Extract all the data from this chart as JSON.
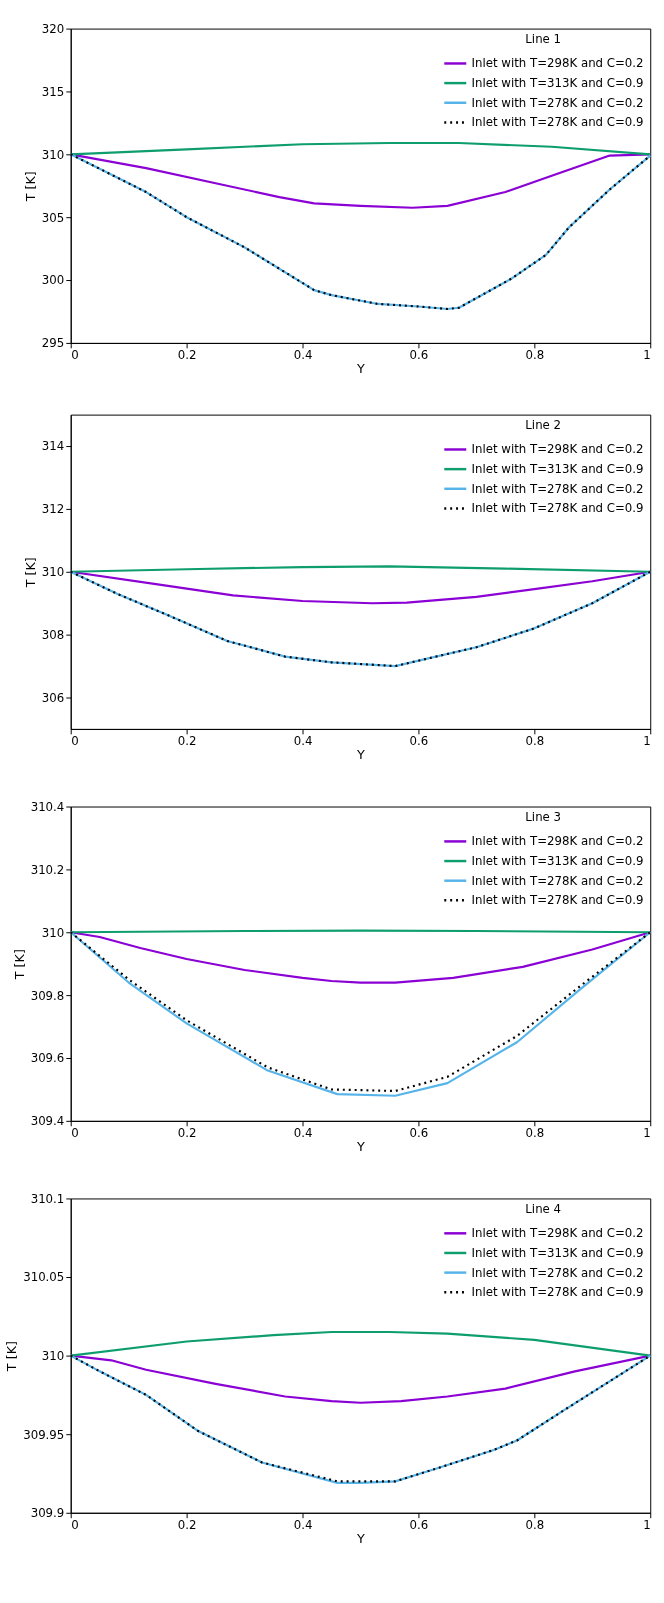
{
  "chart_data": [
    {
      "type": "line",
      "legend_title": "Line 1",
      "xlabel": "Y",
      "ylabel": "T [K]",
      "xlim": [
        0,
        1
      ],
      "xticks": [
        0,
        0.2,
        0.4,
        0.6,
        0.8,
        1
      ],
      "ylim": [
        295,
        320
      ],
      "yticks": [
        295,
        300,
        305,
        310,
        315,
        320
      ],
      "grid": false,
      "legend": "top right",
      "marker": "none",
      "series": [
        {
          "name": "Inlet with T=298K and C=0.2",
          "color": "#8b00d4",
          "line_style": "solid",
          "x": [
            0,
            0.13,
            0.25,
            0.36,
            0.42,
            0.5,
            0.59,
            0.65,
            0.75,
            0.83,
            0.93,
            1
          ],
          "values": [
            310,
            308.9,
            307.7,
            306.6,
            306.1,
            305.9,
            305.75,
            305.9,
            307,
            308.3,
            309.9,
            310
          ]
        },
        {
          "name": "Inlet with T=313K and C=0.9",
          "color": "#0e9e6e",
          "line_style": "solid",
          "x": [
            0,
            0.2,
            0.4,
            0.55,
            0.67,
            0.83,
            1
          ],
          "values": [
            310,
            310.4,
            310.8,
            310.9,
            310.9,
            310.6,
            310
          ]
        },
        {
          "name": "Inlet with T=278K and C=0.2",
          "color": "#56b4e9",
          "line_style": "solid",
          "x": [
            0,
            0.13,
            0.2,
            0.3,
            0.42,
            0.45,
            0.53,
            0.6,
            0.65,
            0.67,
            0.76,
            0.82,
            0.86,
            0.93,
            1
          ],
          "values": [
            310,
            307,
            305,
            302.6,
            299.2,
            298.8,
            298.1,
            297.9,
            297.7,
            297.8,
            300.1,
            302,
            304.2,
            307.2,
            309.9
          ]
        },
        {
          "name": "Inlet with T=278K and C=0.9",
          "color": "#000000",
          "line_style": "dotted",
          "x": [
            0,
            0.13,
            0.2,
            0.3,
            0.42,
            0.45,
            0.53,
            0.6,
            0.65,
            0.67,
            0.76,
            0.82,
            0.86,
            0.93,
            1
          ],
          "values": [
            310,
            307,
            305,
            302.6,
            299.2,
            298.8,
            298.1,
            297.9,
            297.7,
            297.8,
            300.1,
            302,
            304.2,
            307.2,
            309.9
          ]
        }
      ]
    },
    {
      "type": "line",
      "legend_title": "Line 2",
      "xlabel": "Y",
      "ylabel": "T [K]",
      "xlim": [
        0,
        1
      ],
      "xticks": [
        0,
        0.2,
        0.4,
        0.6,
        0.8,
        1
      ],
      "ylim": [
        305,
        315
      ],
      "yticks": [
        306,
        308,
        310,
        312,
        314
      ],
      "grid": false,
      "legend": "top right",
      "marker": "none",
      "series": [
        {
          "name": "Inlet with T=298K and C=0.2",
          "color": "#8b00d4",
          "line_style": "solid",
          "x": [
            0,
            0.15,
            0.28,
            0.4,
            0.52,
            0.58,
            0.7,
            0.8,
            0.9,
            1
          ],
          "values": [
            310,
            309.6,
            309.25,
            309.07,
            309.0,
            309.02,
            309.2,
            309.45,
            309.7,
            310
          ]
        },
        {
          "name": "Inlet with T=313K and C=0.9",
          "color": "#0e9e6e",
          "line_style": "solid",
          "x": [
            0,
            0.2,
            0.4,
            0.55,
            0.75,
            1
          ],
          "values": [
            310,
            310.08,
            310.15,
            310.17,
            310.1,
            310
          ]
        },
        {
          "name": "Inlet with T=278K and C=0.2",
          "color": "#56b4e9",
          "line_style": "solid",
          "x": [
            0,
            0.08,
            0.17,
            0.27,
            0.37,
            0.45,
            0.56,
            0.63,
            0.7,
            0.8,
            0.9,
            1
          ],
          "values": [
            310,
            309.3,
            308.6,
            307.8,
            307.3,
            307.12,
            307.0,
            307.3,
            307.6,
            308.2,
            309,
            310
          ]
        },
        {
          "name": "Inlet with T=278K and C=0.9",
          "color": "#000000",
          "line_style": "dotted",
          "x": [
            0,
            0.08,
            0.17,
            0.27,
            0.37,
            0.45,
            0.56,
            0.63,
            0.7,
            0.8,
            0.9,
            1
          ],
          "values": [
            310,
            309.3,
            308.6,
            307.8,
            307.3,
            307.12,
            307.0,
            307.3,
            307.6,
            308.2,
            309,
            310
          ]
        }
      ]
    },
    {
      "type": "line",
      "legend_title": "Line 3",
      "xlabel": "Y",
      "ylabel": "T [K]",
      "xlim": [
        0,
        1
      ],
      "xticks": [
        0,
        0.2,
        0.4,
        0.6,
        0.8,
        1
      ],
      "ylim": [
        309.4,
        310.4
      ],
      "yticks": [
        309.4,
        309.6,
        309.8,
        310,
        310.2,
        310.4
      ],
      "grid": false,
      "legend": "top right",
      "marker": "none",
      "series": [
        {
          "name": "Inlet with T=298K and C=0.2",
          "color": "#8b00d4",
          "line_style": "solid",
          "x": [
            0,
            0.05,
            0.12,
            0.2,
            0.3,
            0.4,
            0.45,
            0.5,
            0.56,
            0.66,
            0.78,
            0.9,
            1
          ],
          "values": [
            310,
            309.985,
            309.95,
            309.915,
            309.88,
            309.855,
            309.845,
            309.84,
            309.84,
            309.855,
            309.89,
            309.945,
            310
          ]
        },
        {
          "name": "Inlet with T=313K and C=0.9",
          "color": "#0e9e6e",
          "line_style": "solid",
          "x": [
            0,
            0.3,
            0.5,
            0.7,
            1
          ],
          "values": [
            310,
            310.004,
            310.005,
            310.004,
            310
          ]
        },
        {
          "name": "Inlet with T=278K and C=0.2",
          "color": "#56b4e9",
          "line_style": "solid",
          "x": [
            0,
            0.1,
            0.2,
            0.34,
            0.46,
            0.56,
            0.65,
            0.77,
            0.88,
            1
          ],
          "values": [
            310,
            309.84,
            309.71,
            309.56,
            309.485,
            309.48,
            309.52,
            309.65,
            309.82,
            310
          ]
        },
        {
          "name": "Inlet with T=278K and C=0.9",
          "color": "#000000",
          "line_style": "dotted",
          "x": [
            0,
            0.1,
            0.2,
            0.34,
            0.45,
            0.56,
            0.65,
            0.77,
            0.88,
            1
          ],
          "values": [
            310,
            309.85,
            309.72,
            309.57,
            309.5,
            309.495,
            309.54,
            309.67,
            309.83,
            310
          ]
        }
      ]
    },
    {
      "type": "line",
      "legend_title": "Line 4",
      "xlabel": "Y",
      "ylabel": "T [K]",
      "xlim": [
        0,
        1
      ],
      "xticks": [
        0,
        0.2,
        0.4,
        0.6,
        0.8,
        1
      ],
      "ylim": [
        309.9,
        310.1
      ],
      "yticks": [
        309.9,
        309.95,
        310,
        310.05,
        310.1
      ],
      "grid": false,
      "legend": "top right",
      "marker": "none",
      "series": [
        {
          "name": "Inlet with T=298K and C=0.2",
          "color": "#8b00d4",
          "line_style": "solid",
          "x": [
            0,
            0.07,
            0.13,
            0.25,
            0.37,
            0.45,
            0.5,
            0.57,
            0.65,
            0.75,
            0.87,
            1
          ],
          "values": [
            310,
            309.997,
            309.991,
            309.982,
            309.974,
            309.971,
            309.97,
            309.971,
            309.974,
            309.979,
            309.99,
            310
          ]
        },
        {
          "name": "Inlet with T=313K and C=0.9",
          "color": "#0e9e6e",
          "line_style": "solid",
          "x": [
            0,
            0.2,
            0.35,
            0.45,
            0.55,
            0.65,
            0.8,
            1
          ],
          "values": [
            310,
            310.009,
            310.013,
            310.015,
            310.015,
            310.014,
            310.01,
            310
          ]
        },
        {
          "name": "Inlet with T=278K and C=0.2",
          "color": "#56b4e9",
          "line_style": "solid",
          "x": [
            0,
            0.05,
            0.13,
            0.22,
            0.33,
            0.46,
            0.5,
            0.56,
            0.63,
            0.73,
            0.77,
            0.85,
            1
          ],
          "values": [
            310,
            309.99,
            309.975,
            309.952,
            309.932,
            309.919,
            309.919,
            309.92,
            309.928,
            309.94,
            309.946,
            309.965,
            310
          ]
        },
        {
          "name": "Inlet with T=278K and C=0.9",
          "color": "#000000",
          "line_style": "dotted",
          "x": [
            0,
            0.05,
            0.13,
            0.22,
            0.33,
            0.46,
            0.5,
            0.56,
            0.63,
            0.73,
            0.77,
            0.85,
            1
          ],
          "values": [
            310,
            309.99,
            309.975,
            309.952,
            309.932,
            309.92,
            309.92,
            309.92,
            309.928,
            309.94,
            309.946,
            309.965,
            310
          ]
        }
      ]
    }
  ]
}
